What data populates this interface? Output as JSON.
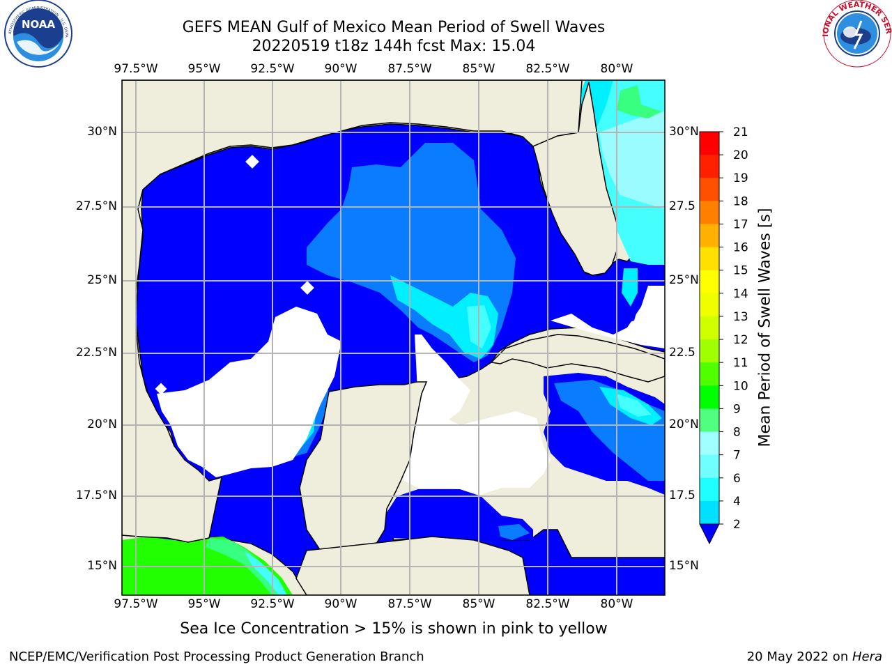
{
  "title": {
    "line1": "GEFS MEAN Gulf of Mexico Mean Period of Swell Waves",
    "line2": "20220519 t18z 144h fcst   Max: 15.04"
  },
  "map": {
    "lon_ticks": [
      "97.5°W",
      "95°W",
      "92.5°W",
      "90°W",
      "87.5°W",
      "85°W",
      "82.5°W",
      "80°W"
    ],
    "lat_ticks": [
      "30°N",
      "27.5°N",
      "25°N",
      "22.5°N",
      "20°N",
      "17.5°N",
      "15°N"
    ],
    "lat_ticks_right": [
      "30°N",
      "27.5",
      "25°N",
      "22.5",
      "20°N",
      "17.5",
      "15°N"
    ],
    "colors": {
      "land": "#efeedc",
      "nodata": "#ffffff",
      "level_2": "#0000ff",
      "level_4": "#0a7cff",
      "level_6": "#00f0ff",
      "level_8": "#45ffff",
      "level_9": "#9bfcff",
      "level_10": "#38ff80",
      "level_11": "#22ff00",
      "grid": "#b4b4b4"
    }
  },
  "colorbar": {
    "label": "Mean Period of Swell Waves [s]",
    "levels": [
      "2",
      "4",
      "6",
      "7",
      "8",
      "9",
      "10",
      "11",
      "12",
      "13",
      "14",
      "15",
      "16",
      "17",
      "18",
      "19",
      "20",
      "21"
    ],
    "tick_labels": [
      "21",
      "20",
      "19",
      "18",
      "17",
      "16",
      "15",
      "14",
      "13",
      "12",
      "11",
      "10",
      "9",
      "8",
      "7",
      "6",
      "4",
      "2"
    ],
    "colors": [
      "#0060ff",
      "#00e0ff",
      "#20ffff",
      "#70ffff",
      "#a0ffff",
      "#50ff80",
      "#00ff00",
      "#50ff00",
      "#a0ff00",
      "#d0ff00",
      "#f0ff00",
      "#ffff00",
      "#ffe000",
      "#ffb000",
      "#ff8000",
      "#ff5000",
      "#ff2000",
      "#ff0000"
    ],
    "extend_color": "#0000ff"
  },
  "logos": {
    "noaa_text": "NOAA",
    "noaa_ring": "NATIONAL OCEANIC AND ATMOSPHERIC ADMINISTRATION · U.S. DEPARTMENT OF COMMERCE",
    "nws_ring": "NATIONAL WEATHER SERVICE"
  },
  "notes": {
    "sea_ice": "Sea Ice Concentration > 15% is shown in pink to yellow",
    "footer_left": "NCEP/EMC/Verification Post Processing Product Generation Branch",
    "footer_date": "20 May 2022 on ",
    "footer_machine": "Hera"
  }
}
